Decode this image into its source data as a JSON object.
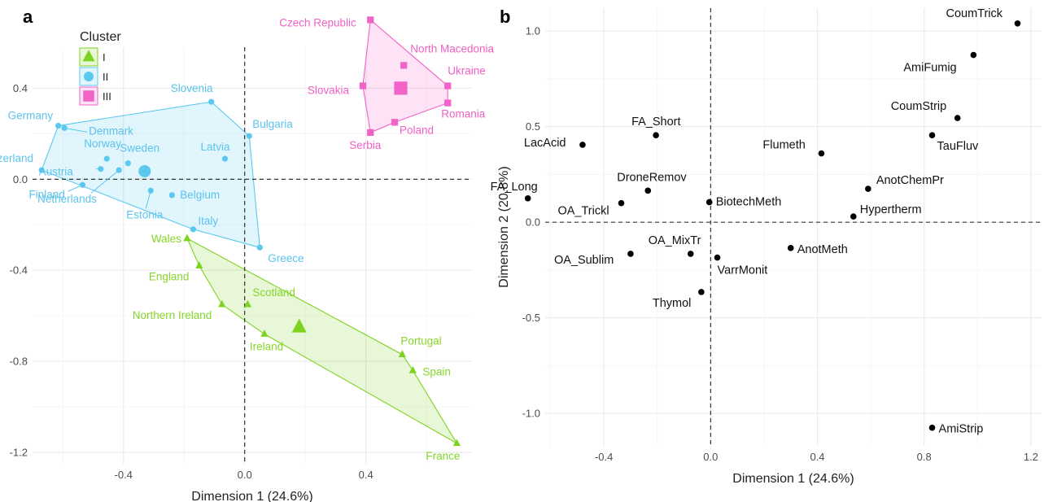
{
  "colors": {
    "I": "#7ed321",
    "II": "#5bc8ef",
    "III": "#f263c8",
    "text_I": "#86d62a",
    "text_II": "#5cc3ec",
    "text_III": "#f060c6",
    "grid": "#ebebeb",
    "point_b": "#000000"
  },
  "chart_data": [
    {
      "panel": "a",
      "type": "scatter",
      "xlabel": "Dimension 1 (24.6%)",
      "ylabel": "Dimension 2 (20.8%)",
      "xlim": [
        -0.7,
        0.75
      ],
      "ylim": [
        -1.25,
        0.58
      ],
      "xticks": [
        -0.4,
        0.0,
        0.4
      ],
      "xtick_labels": [
        "-0.4",
        "0.0",
        "0.4"
      ],
      "yticks": [
        0.4,
        0.0,
        -0.4,
        -0.8,
        -1.2
      ],
      "ytick_labels": [
        "0.4",
        "0.0",
        "-0.4",
        "-0.8",
        "-1.2"
      ],
      "grid": true,
      "reference_lines": {
        "x": 0,
        "y": 0,
        "style": "dashed"
      },
      "legend": {
        "title": "Cluster",
        "placement": "top-left",
        "entries": [
          {
            "name": "I",
            "shape": "triangle"
          },
          {
            "name": "II",
            "shape": "circle"
          },
          {
            "name": "III",
            "shape": "square"
          }
        ]
      },
      "clusters": [
        {
          "name": "I",
          "shape": "triangle",
          "centroid": [
            0.18,
            -0.65
          ],
          "points": [
            {
              "label": "Wales",
              "x": -0.19,
              "y": -0.26
            },
            {
              "label": "England",
              "x": -0.15,
              "y": -0.38
            },
            {
              "label": "Northern Ireland",
              "x": -0.075,
              "y": -0.55
            },
            {
              "label": "Scotland",
              "x": 0.01,
              "y": -0.55
            },
            {
              "label": "Ireland",
              "x": 0.065,
              "y": -0.68
            },
            {
              "label": "Portugal",
              "x": 0.52,
              "y": -0.77
            },
            {
              "label": "Spain",
              "x": 0.555,
              "y": -0.84
            },
            {
              "label": "France",
              "x": 0.7,
              "y": -1.16
            }
          ],
          "hull_order": [
            "Wales",
            "England",
            "Northern Ireland",
            "Ireland",
            "France",
            "Spain",
            "Portugal",
            "Wales"
          ]
        },
        {
          "name": "II",
          "shape": "circle",
          "centroid": [
            -0.33,
            0.035
          ],
          "points": [
            {
              "label": "Germany",
              "x": -0.615,
              "y": 0.235
            },
            {
              "label": "Denmark",
              "x": -0.595,
              "y": 0.225
            },
            {
              "label": "Switzerland",
              "x": -0.67,
              "y": 0.04
            },
            {
              "label": "Norway",
              "x": -0.455,
              "y": 0.09
            },
            {
              "label": "Austria",
              "x": -0.475,
              "y": 0.045
            },
            {
              "label": "Sweden",
              "x": -0.385,
              "y": 0.07
            },
            {
              "label": "Finland",
              "x": -0.535,
              "y": -0.025
            },
            {
              "label": "Netherlands",
              "x": -0.415,
              "y": 0.04
            },
            {
              "label": "Estonia",
              "x": -0.31,
              "y": -0.05
            },
            {
              "label": "Belgium",
              "x": -0.24,
              "y": -0.07
            },
            {
              "label": "Slovenia",
              "x": -0.11,
              "y": 0.34
            },
            {
              "label": "Bulgaria",
              "x": 0.015,
              "y": 0.19
            },
            {
              "label": "Latvia",
              "x": -0.065,
              "y": 0.09
            },
            {
              "label": "Italy",
              "x": -0.17,
              "y": -0.22
            },
            {
              "label": "Greece",
              "x": 0.05,
              "y": -0.3
            }
          ],
          "hull_order": [
            "Switzerland",
            "Germany",
            "Slovenia",
            "Bulgaria",
            "Greece",
            "Italy",
            "Switzerland"
          ]
        },
        {
          "name": "III",
          "shape": "square",
          "centroid": [
            0.515,
            0.4
          ],
          "points": [
            {
              "label": "Czech Republic",
              "x": 0.415,
              "y": 0.7
            },
            {
              "label": "North Macedonia",
              "x": 0.525,
              "y": 0.5
            },
            {
              "label": "Ukraine",
              "x": 0.67,
              "y": 0.41
            },
            {
              "label": "Romania",
              "x": 0.67,
              "y": 0.335
            },
            {
              "label": "Slovakia",
              "x": 0.39,
              "y": 0.41
            },
            {
              "label": "Serbia",
              "x": 0.415,
              "y": 0.205
            },
            {
              "label": "Poland",
              "x": 0.495,
              "y": 0.25
            }
          ],
          "hull_order": [
            "Czech Republic",
            "Ukraine",
            "Romania",
            "Poland",
            "Serbia",
            "Slovakia",
            "Czech Republic"
          ]
        }
      ]
    },
    {
      "panel": "b",
      "type": "scatter",
      "xlabel": "Dimension 1 (24.6%)",
      "ylabel": "Dimension 2 (20.8%)",
      "xlim": [
        -0.62,
        1.24
      ],
      "ylim": [
        -1.17,
        1.12
      ],
      "xticks": [
        -0.4,
        0.0,
        0.4,
        0.8,
        1.2
      ],
      "xtick_labels": [
        "-0.4",
        "0.0",
        "0.4",
        "0.8",
        "1.2"
      ],
      "yticks": [
        1.0,
        0.5,
        0.0,
        -0.5,
        -1.0
      ],
      "ytick_labels": [
        "1.0",
        "0.5",
        "0.0",
        "-0.5",
        "-1.0"
      ],
      "grid": true,
      "reference_lines": {
        "x": 0,
        "y": 0,
        "style": "dashed"
      },
      "points": [
        {
          "label": "CoumTrick",
          "x": 1.15,
          "y": 1.04
        },
        {
          "label": "AmiFumig",
          "x": 0.985,
          "y": 0.875
        },
        {
          "label": "CoumStrip",
          "x": 0.925,
          "y": 0.545
        },
        {
          "label": "TauFluv",
          "x": 0.83,
          "y": 0.455
        },
        {
          "label": "FA_Short",
          "x": -0.205,
          "y": 0.455
        },
        {
          "label": "LacAcid",
          "x": -0.48,
          "y": 0.405
        },
        {
          "label": "Flumeth",
          "x": 0.415,
          "y": 0.36
        },
        {
          "label": "AnotChemPr",
          "x": 0.59,
          "y": 0.175
        },
        {
          "label": "DroneRemov",
          "x": -0.235,
          "y": 0.165
        },
        {
          "label": "FA_Long",
          "x": -0.685,
          "y": 0.125
        },
        {
          "label": "BiotechMeth",
          "x": -0.005,
          "y": 0.105
        },
        {
          "label": "OA_Trickl",
          "x": -0.335,
          "y": 0.1
        },
        {
          "label": "Hypertherm",
          "x": 0.535,
          "y": 0.03
        },
        {
          "label": "AnotMeth",
          "x": 0.3,
          "y": -0.135
        },
        {
          "label": "OA_Sublim",
          "x": -0.3,
          "y": -0.165
        },
        {
          "label": "OA_MixTr",
          "x": -0.075,
          "y": -0.165
        },
        {
          "label": "VarrMonit",
          "x": 0.025,
          "y": -0.185
        },
        {
          "label": "Thymol",
          "x": -0.035,
          "y": -0.365
        },
        {
          "label": "AmiStrip",
          "x": 0.83,
          "y": -1.075
        }
      ]
    }
  ]
}
